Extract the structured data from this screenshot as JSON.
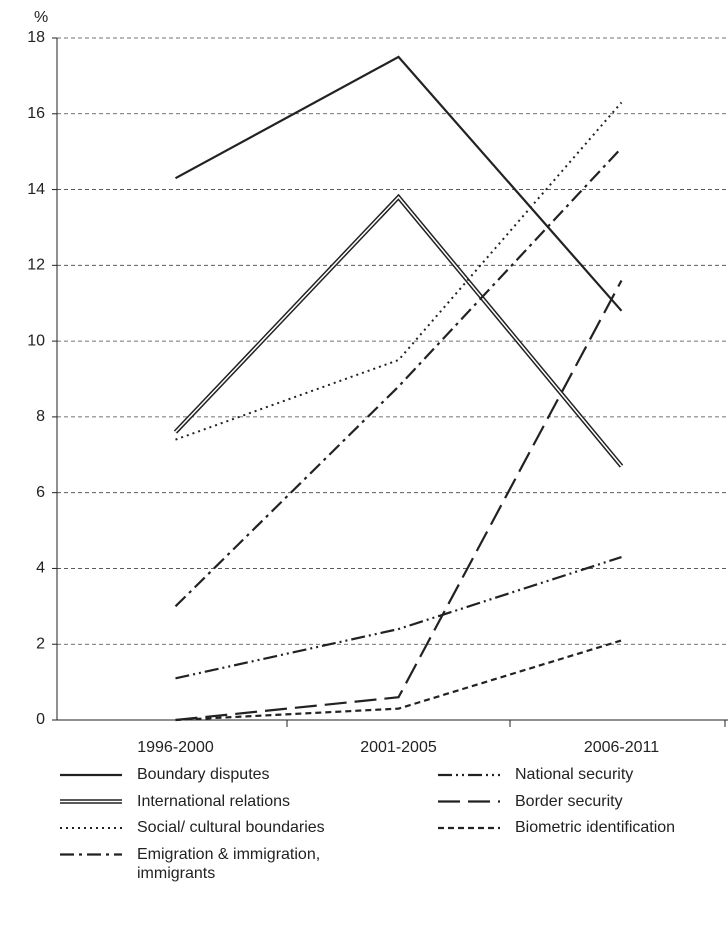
{
  "chart_data": {
    "type": "line",
    "y_label": "%",
    "categories": [
      "1996-2000",
      "2001-2005",
      "2006-2011"
    ],
    "ylim": [
      0,
      18
    ],
    "yticks": [
      0,
      2,
      4,
      6,
      8,
      10,
      12,
      14,
      16,
      18
    ],
    "grid": true,
    "series": [
      {
        "name": "Boundary disputes",
        "color": "#222222",
        "style": "solid",
        "values": [
          14.3,
          17.5,
          10.8
        ]
      },
      {
        "name": "International relations",
        "color": "#222222",
        "style": "double",
        "values": [
          7.6,
          13.8,
          6.7
        ]
      },
      {
        "name": "Social/ cultural boundaries",
        "color": "#222222",
        "style": "dotted",
        "values": [
          7.4,
          9.5,
          16.3
        ]
      },
      {
        "name": "Emigration & immigration, immigrants",
        "color": "#222222",
        "style": "dashdot",
        "values": [
          3.0,
          8.8,
          15.1
        ]
      },
      {
        "name": "National security",
        "color": "#222222",
        "style": "dashdotdot",
        "values": [
          1.1,
          2.4,
          4.3
        ]
      },
      {
        "name": "Border security",
        "color": "#222222",
        "style": "longdash",
        "values": [
          0,
          0.6,
          11.6
        ]
      },
      {
        "name": "Biometric identification",
        "color": "#222222",
        "style": "shortdash",
        "values": [
          0,
          0.3,
          2.1
        ]
      }
    ]
  }
}
